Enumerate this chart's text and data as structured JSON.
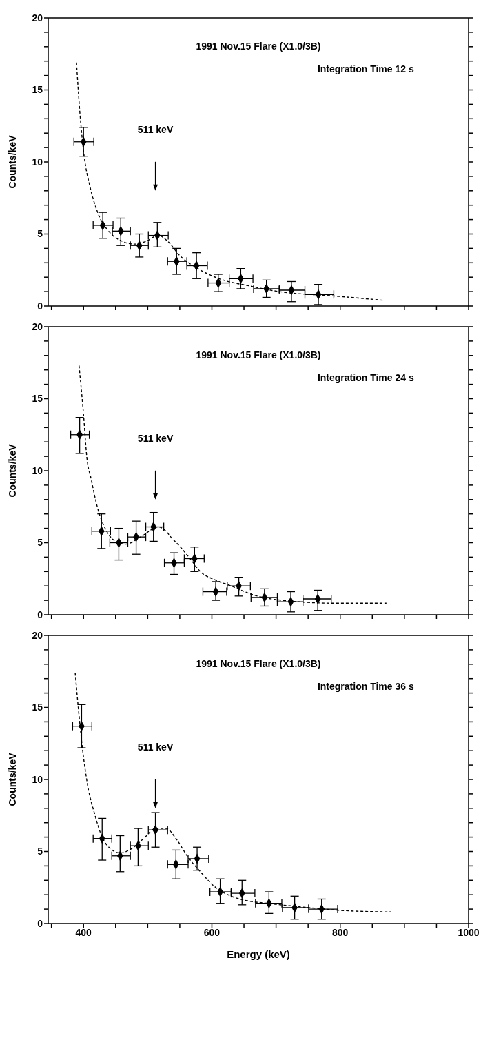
{
  "chart_data": [
    {
      "type": "scatter",
      "ylabel": "Counts/keV",
      "tick_labels": "y",
      "xlim": [
        345,
        1000
      ],
      "ylim": [
        0,
        20
      ],
      "xticks": [
        {
          "value": 350,
          "label": null
        },
        400,
        {
          "value": 450,
          "label": null
        },
        {
          "value": 500,
          "label": null
        },
        {
          "value": 550,
          "label": null
        },
        600,
        {
          "value": 650,
          "label": null
        },
        {
          "value": 700,
          "label": null
        },
        {
          "value": 750,
          "label": null
        },
        800,
        {
          "value": 850,
          "label": null
        },
        {
          "value": 900,
          "label": null
        },
        {
          "value": 950,
          "label": null
        },
        1000
      ],
      "yticks": [
        0,
        {
          "value": 1,
          "label": null
        },
        {
          "value": 2,
          "label": null
        },
        {
          "value": 3,
          "label": null
        },
        {
          "value": 4,
          "label": null
        },
        5,
        {
          "value": 6,
          "label": null
        },
        {
          "value": 7,
          "label": null
        },
        {
          "value": 8,
          "label": null
        },
        {
          "value": 9,
          "label": null
        },
        10,
        {
          "value": 11,
          "label": null
        },
        {
          "value": 12,
          "label": null
        },
        {
          "value": 13,
          "label": null
        },
        {
          "value": 14,
          "label": null
        },
        15,
        {
          "value": 16,
          "label": null
        },
        {
          "value": 17,
          "label": null
        },
        {
          "value": 18,
          "label": null
        },
        {
          "value": 19,
          "label": null
        },
        20
      ],
      "series": [
        {
          "marker": "diamond",
          "color": "#000000",
          "x": [
            400,
            430,
            458,
            487,
            515,
            545,
            576,
            610,
            645,
            685,
            724,
            766
          ],
          "values": [
            11.4,
            5.6,
            5.2,
            4.2,
            4.9,
            3.1,
            2.8,
            1.6,
            1.9,
            1.2,
            1.1,
            0.8
          ],
          "errors": [
            [
              10.4,
              12.4
            ],
            [
              4.7,
              6.5
            ],
            [
              4.2,
              6.1
            ],
            [
              3.4,
              5.0
            ],
            [
              4.1,
              5.8
            ],
            [
              2.2,
              4.0
            ],
            [
              1.9,
              3.7
            ],
            [
              1.0,
              2.2
            ],
            [
              1.2,
              2.6
            ],
            [
              0.6,
              1.8
            ],
            [
              0.3,
              1.7
            ],
            [
              0.1,
              1.5
            ]
          ],
          "xerrors": [
            [
              385,
              416
            ],
            [
              415,
              446
            ],
            [
              445,
              473
            ],
            [
              473,
              501
            ],
            [
              501,
              532
            ],
            [
              531,
              561
            ],
            [
              561,
              593
            ],
            [
              594,
              627
            ],
            [
              627,
              664
            ],
            [
              665,
              705
            ],
            [
              705,
              745
            ],
            [
              745,
              790
            ]
          ]
        },
        {
          "type": "line",
          "color": "#000000",
          "line_style": "dashed",
          "x": [
            389,
            394,
            401,
            410,
            422,
            441,
            460,
            479,
            498,
            516,
            531,
            550,
            578,
            611,
            658,
            705,
            790,
            866
          ],
          "values": [
            16.9,
            13.6,
            10.4,
            8.3,
            6.5,
            5.1,
            4.5,
            4.3,
            4.5,
            4.9,
            4.5,
            3.5,
            2.6,
            1.9,
            1.4,
            1.0,
            0.7,
            0.4
          ]
        }
      ],
      "annotations": [
        "1991 Nov.15 Flare (X1.0/3B)",
        "Integration Time 12 s",
        "511 keV"
      ]
    },
    {
      "type": "scatter",
      "ylabel": "Counts/keV",
      "tick_labels": "y",
      "xlim": [
        345,
        1000
      ],
      "ylim": [
        0,
        20
      ],
      "xticks": [
        {
          "value": 350,
          "label": null
        },
        400,
        {
          "value": 450,
          "label": null
        },
        {
          "value": 500,
          "label": null
        },
        {
          "value": 550,
          "label": null
        },
        600,
        {
          "value": 650,
          "label": null
        },
        {
          "value": 700,
          "label": null
        },
        {
          "value": 750,
          "label": null
        },
        800,
        {
          "value": 850,
          "label": null
        },
        {
          "value": 900,
          "label": null
        },
        {
          "value": 950,
          "label": null
        },
        1000
      ],
      "yticks": [
        0,
        {
          "value": 1,
          "label": null
        },
        {
          "value": 2,
          "label": null
        },
        {
          "value": 3,
          "label": null
        },
        {
          "value": 4,
          "label": null
        },
        5,
        {
          "value": 6,
          "label": null
        },
        {
          "value": 7,
          "label": null
        },
        {
          "value": 8,
          "label": null
        },
        {
          "value": 9,
          "label": null
        },
        10,
        {
          "value": 11,
          "label": null
        },
        {
          "value": 12,
          "label": null
        },
        {
          "value": 13,
          "label": null
        },
        {
          "value": 14,
          "label": null
        },
        15,
        {
          "value": 16,
          "label": null
        },
        {
          "value": 17,
          "label": null
        },
        {
          "value": 18,
          "label": null
        },
        {
          "value": 19,
          "label": null
        },
        20
      ],
      "series": [
        {
          "marker": "diamond",
          "color": "#000000",
          "x": [
            394,
            428,
            455,
            482,
            509,
            541,
            573,
            606,
            642,
            682,
            723,
            765
          ],
          "values": [
            12.5,
            5.8,
            5.0,
            5.4,
            6.1,
            3.6,
            3.9,
            1.6,
            2.0,
            1.2,
            0.9,
            1.1
          ],
          "errors": [
            [
              11.2,
              13.7
            ],
            [
              4.6,
              7.0
            ],
            [
              3.8,
              6.0
            ],
            [
              4.2,
              6.5
            ],
            [
              5.1,
              7.1
            ],
            [
              2.8,
              4.3
            ],
            [
              3.0,
              4.7
            ],
            [
              1.0,
              2.3
            ],
            [
              1.3,
              2.6
            ],
            [
              0.6,
              1.8
            ],
            [
              0.2,
              1.6
            ],
            [
              0.3,
              1.7
            ]
          ],
          "xerrors": [
            [
              380,
              409
            ],
            [
              413,
              442
            ],
            [
              441,
              469
            ],
            [
              469,
              497
            ],
            [
              497,
              525
            ],
            [
              526,
              557
            ],
            [
              557,
              588
            ],
            [
              586,
              623
            ],
            [
              624,
              660
            ],
            [
              661,
              702
            ],
            [
              702,
              742
            ],
            [
              742,
              786
            ]
          ]
        },
        {
          "type": "line",
          "color": "#000000",
          "line_style": "dashed",
          "x": [
            393,
            400,
            405,
            412,
            422,
            436,
            450,
            466,
            489,
            517,
            526,
            538,
            549,
            566,
            582,
            606,
            630,
            663,
            710,
            794,
            872
          ],
          "values": [
            17.3,
            13.9,
            11.0,
            9.4,
            7.4,
            5.8,
            5.1,
            4.9,
            5.4,
            6.1,
            5.9,
            5.3,
            4.8,
            3.9,
            3.0,
            2.4,
            2.0,
            1.4,
            1.0,
            0.8,
            0.8
          ]
        }
      ],
      "annotations": [
        "1991 Nov.15 Flare (X1.0/3B)",
        "Integration Time 24 s",
        "511 keV"
      ]
    },
    {
      "type": "scatter",
      "xlabel": "Energy (keV)",
      "ylabel": "Counts/keV",
      "xlim": [
        345,
        1000
      ],
      "ylim": [
        0,
        20
      ],
      "xticks": [
        {
          "value": 350,
          "label": null
        },
        400,
        {
          "value": 450,
          "label": null
        },
        {
          "value": 500,
          "label": null
        },
        {
          "value": 550,
          "label": null
        },
        600,
        {
          "value": 650,
          "label": null
        },
        {
          "value": 700,
          "label": null
        },
        {
          "value": 750,
          "label": null
        },
        800,
        {
          "value": 850,
          "label": null
        },
        {
          "value": 900,
          "label": null
        },
        {
          "value": 950,
          "label": null
        },
        1000
      ],
      "yticks": [
        0,
        {
          "value": 1,
          "label": null
        },
        {
          "value": 2,
          "label": null
        },
        {
          "value": 3,
          "label": null
        },
        {
          "value": 4,
          "label": null
        },
        5,
        {
          "value": 6,
          "label": null
        },
        {
          "value": 7,
          "label": null
        },
        {
          "value": 8,
          "label": null
        },
        {
          "value": 9,
          "label": null
        },
        10,
        {
          "value": 11,
          "label": null
        },
        {
          "value": 12,
          "label": null
        },
        {
          "value": 13,
          "label": null
        },
        {
          "value": 14,
          "label": null
        },
        15,
        {
          "value": 16,
          "label": null
        },
        {
          "value": 17,
          "label": null
        },
        {
          "value": 18,
          "label": null
        },
        {
          "value": 19,
          "label": null
        },
        20
      ],
      "series": [
        {
          "marker": "diamond",
          "color": "#000000",
          "x": [
            397,
            429,
            457,
            485,
            512,
            544,
            577,
            613,
            647,
            689,
            729,
            771
          ],
          "values": [
            13.7,
            5.9,
            4.7,
            5.4,
            6.5,
            4.1,
            4.5,
            2.2,
            2.1,
            1.4,
            1.1,
            1.0
          ],
          "errors": [
            [
              12.2,
              15.2
            ],
            [
              4.4,
              7.3
            ],
            [
              3.6,
              6.1
            ],
            [
              4.0,
              6.6
            ],
            [
              5.3,
              7.7
            ],
            [
              3.1,
              5.1
            ],
            [
              3.7,
              5.3
            ],
            [
              1.4,
              3.1
            ],
            [
              1.3,
              3.0
            ],
            [
              0.7,
              2.2
            ],
            [
              0.3,
              1.9
            ],
            [
              0.3,
              1.7
            ]
          ],
          "xerrors": [
            [
              383,
              413
            ],
            [
              415,
              444
            ],
            [
              444,
              473
            ],
            [
              473,
              501
            ],
            [
              501,
              531
            ],
            [
              531,
              563
            ],
            [
              563,
              595
            ],
            [
              597,
              630
            ],
            [
              630,
              667
            ],
            [
              668,
              709
            ],
            [
              710,
              751
            ],
            [
              751,
              796
            ]
          ]
        },
        {
          "type": "line",
          "color": "#000000",
          "line_style": "dashed",
          "x": [
            387,
            392,
            399,
            406,
            418,
            429,
            442,
            457,
            475,
            496,
            512,
            529,
            544,
            563,
            582,
            606,
            630,
            653,
            686,
            729,
            805,
            879
          ],
          "values": [
            17.4,
            14.9,
            11.9,
            9.7,
            7.5,
            6.0,
            5.2,
            4.9,
            5.2,
            6.0,
            6.6,
            6.6,
            5.9,
            4.6,
            3.6,
            2.5,
            1.9,
            1.6,
            1.4,
            1.2,
            0.9,
            0.8
          ]
        }
      ],
      "annotations": [
        "1991 Nov.15 Flare (X1.0/3B)",
        "Integration Time 36 s",
        "511 keV"
      ]
    }
  ]
}
